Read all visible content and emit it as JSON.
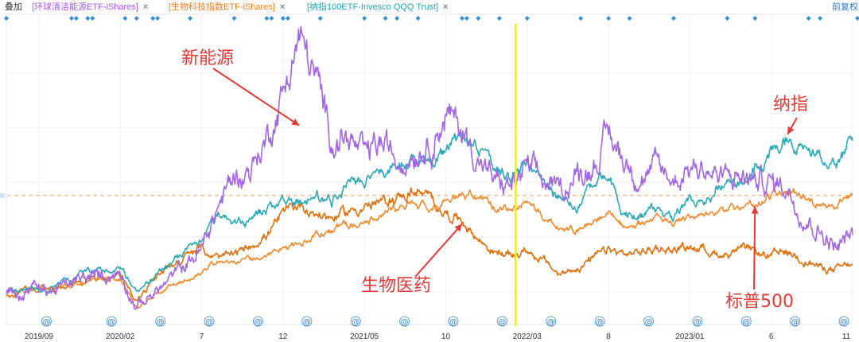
{
  "toolbar": {
    "overlay_label": "叠加",
    "series_tags": [
      {
        "label": "[环球清洁能源ETF-iShares]",
        "color": "#a855f7"
      },
      {
        "label": "[生物科技指数ETF-iShares]",
        "color": "#ee7d22"
      },
      {
        "label": "[纳指100ETF-Invesco QQQ Trust]",
        "color": "#22a7b4"
      }
    ],
    "close_symbol": "×",
    "adjust_label": "前复权"
  },
  "colors": {
    "clean_energy": "#a366e6",
    "biotech": "#e0700c",
    "nasdaq": "#2aaab8",
    "sp500": "#f08a2c",
    "cursor": "#f2f200",
    "arrow": "#e53935",
    "annotation_text": "#e53935",
    "reference_line": "#f4a460",
    "axis_text": "#333333",
    "marker": "#2f8ee0"
  },
  "chart_data": {
    "type": "line",
    "title": "",
    "xlabel": "",
    "ylabel": "",
    "x_start": "2019-07",
    "x_end": "2023-11",
    "ylim": [
      0.7,
      3.45
    ],
    "grid": true,
    "baseline": 1.0,
    "reference_value": 1.88,
    "cursor_date": "2022-02",
    "x_tick_labels": [
      {
        "label": "2019/09",
        "date": "2019-09"
      },
      {
        "label": "2020/02",
        "date": "2020-02"
      },
      {
        "label": "7",
        "date": "2020-07"
      },
      {
        "label": "12",
        "date": "2020-12"
      },
      {
        "label": "2021/05",
        "date": "2021-05"
      },
      {
        "label": "10",
        "date": "2021-10"
      },
      {
        "label": "2022/03",
        "date": "2022-03"
      },
      {
        "label": "8",
        "date": "2022-08"
      },
      {
        "label": "2023/01",
        "date": "2023-01"
      },
      {
        "label": "6",
        "date": "2023-06"
      },
      {
        "label": "11",
        "date": "2023-11"
      }
    ],
    "series": [
      {
        "key": "clean_energy",
        "name": "[环球清洁能源ETF-iShares]",
        "points": [
          [
            "2019-07",
            0.98
          ],
          [
            "2019-10",
            1.02
          ],
          [
            "2019-12",
            1.12
          ],
          [
            "2020-02",
            1.18
          ],
          [
            "2020-03",
            0.86
          ],
          [
            "2020-05",
            1.1
          ],
          [
            "2020-06",
            1.25
          ],
          [
            "2020-07",
            1.38
          ],
          [
            "2020-08",
            1.78
          ],
          [
            "2020-09",
            2.05
          ],
          [
            "2020-10",
            2.12
          ],
          [
            "2020-11",
            2.4
          ],
          [
            "2020-12",
            2.82
          ],
          [
            "2021-01",
            3.33
          ],
          [
            "2021-02",
            2.95
          ],
          [
            "2021-03",
            2.42
          ],
          [
            "2021-04",
            2.4
          ],
          [
            "2021-05",
            2.22
          ],
          [
            "2021-06",
            2.36
          ],
          [
            "2021-07",
            2.2
          ],
          [
            "2021-08",
            2.3
          ],
          [
            "2021-09",
            2.36
          ],
          [
            "2021-10",
            2.62
          ],
          [
            "2021-11",
            2.48
          ],
          [
            "2021-12",
            2.22
          ],
          [
            "2022-01",
            2.0
          ],
          [
            "2022-02",
            1.96
          ],
          [
            "2022-03",
            2.12
          ],
          [
            "2022-04",
            2.0
          ],
          [
            "2022-05",
            1.92
          ],
          [
            "2022-06",
            2.06
          ],
          [
            "2022-07",
            2.16
          ],
          [
            "2022-08",
            2.42
          ],
          [
            "2022-09",
            2.2
          ],
          [
            "2022-10",
            2.06
          ],
          [
            "2022-11",
            2.12
          ],
          [
            "2022-12",
            2.02
          ],
          [
            "2023-01",
            2.16
          ],
          [
            "2023-02",
            2.12
          ],
          [
            "2023-03",
            2.02
          ],
          [
            "2023-04",
            2.06
          ],
          [
            "2023-05",
            2.02
          ],
          [
            "2023-06",
            2.0
          ],
          [
            "2023-07",
            1.96
          ],
          [
            "2023-08",
            1.7
          ],
          [
            "2023-09",
            1.55
          ],
          [
            "2023-10",
            1.4
          ],
          [
            "2023-11",
            1.52
          ]
        ]
      },
      {
        "key": "biotech",
        "name": "[生物科技指数ETF-iShares]",
        "points": [
          [
            "2019-07",
            0.98
          ],
          [
            "2019-10",
            1.04
          ],
          [
            "2019-12",
            1.1
          ],
          [
            "2020-02",
            1.15
          ],
          [
            "2020-03",
            0.92
          ],
          [
            "2020-05",
            1.24
          ],
          [
            "2020-07",
            1.4
          ],
          [
            "2020-08",
            1.3
          ],
          [
            "2020-09",
            1.33
          ],
          [
            "2020-11",
            1.52
          ],
          [
            "2020-12",
            1.7
          ],
          [
            "2021-01",
            1.8
          ],
          [
            "2021-02",
            1.72
          ],
          [
            "2021-03",
            1.68
          ],
          [
            "2021-05",
            1.78
          ],
          [
            "2021-06",
            1.8
          ],
          [
            "2021-08",
            1.92
          ],
          [
            "2021-09",
            1.85
          ],
          [
            "2021-10",
            1.72
          ],
          [
            "2021-11",
            1.66
          ],
          [
            "2021-12",
            1.48
          ],
          [
            "2022-01",
            1.36
          ],
          [
            "2022-02",
            1.32
          ],
          [
            "2022-03",
            1.38
          ],
          [
            "2022-04",
            1.28
          ],
          [
            "2022-05",
            1.15
          ],
          [
            "2022-06",
            1.22
          ],
          [
            "2022-07",
            1.3
          ],
          [
            "2022-08",
            1.38
          ],
          [
            "2022-09",
            1.34
          ],
          [
            "2022-10",
            1.36
          ],
          [
            "2022-11",
            1.4
          ],
          [
            "2022-12",
            1.38
          ],
          [
            "2023-01",
            1.42
          ],
          [
            "2023-02",
            1.38
          ],
          [
            "2023-03",
            1.34
          ],
          [
            "2023-04",
            1.38
          ],
          [
            "2023-05",
            1.36
          ],
          [
            "2023-06",
            1.32
          ],
          [
            "2023-07",
            1.36
          ],
          [
            "2023-08",
            1.3
          ],
          [
            "2023-09",
            1.22
          ],
          [
            "2023-10",
            1.2
          ],
          [
            "2023-11",
            1.25
          ]
        ]
      },
      {
        "key": "nasdaq",
        "name": "[纳指100ETF-Invesco QQQ Trust]",
        "points": [
          [
            "2019-07",
            1.0
          ],
          [
            "2019-10",
            1.05
          ],
          [
            "2019-12",
            1.18
          ],
          [
            "2020-02",
            1.25
          ],
          [
            "2020-03",
            1.0
          ],
          [
            "2020-05",
            1.24
          ],
          [
            "2020-06",
            1.38
          ],
          [
            "2020-07",
            1.5
          ],
          [
            "2020-08",
            1.72
          ],
          [
            "2020-09",
            1.62
          ],
          [
            "2020-10",
            1.65
          ],
          [
            "2020-11",
            1.78
          ],
          [
            "2020-12",
            1.82
          ],
          [
            "2021-02",
            1.88
          ],
          [
            "2021-03",
            1.84
          ],
          [
            "2021-04",
            2.02
          ],
          [
            "2021-05",
            2.0
          ],
          [
            "2021-06",
            2.1
          ],
          [
            "2021-07",
            2.18
          ],
          [
            "2021-08",
            2.22
          ],
          [
            "2021-09",
            2.18
          ],
          [
            "2021-10",
            2.28
          ],
          [
            "2021-11",
            2.4
          ],
          [
            "2021-12",
            2.34
          ],
          [
            "2022-01",
            2.12
          ],
          [
            "2022-02",
            2.08
          ],
          [
            "2022-03",
            2.22
          ],
          [
            "2022-04",
            2.02
          ],
          [
            "2022-05",
            1.88
          ],
          [
            "2022-06",
            1.74
          ],
          [
            "2022-07",
            1.95
          ],
          [
            "2022-08",
            2.06
          ],
          [
            "2022-09",
            1.72
          ],
          [
            "2022-10",
            1.7
          ],
          [
            "2022-11",
            1.78
          ],
          [
            "2022-12",
            1.66
          ],
          [
            "2023-01",
            1.84
          ],
          [
            "2023-02",
            1.84
          ],
          [
            "2023-03",
            1.98
          ],
          [
            "2023-04",
            2.02
          ],
          [
            "2023-05",
            2.15
          ],
          [
            "2023-06",
            2.32
          ],
          [
            "2023-07",
            2.42
          ],
          [
            "2023-08",
            2.3
          ],
          [
            "2023-09",
            2.24
          ],
          [
            "2023-10",
            2.18
          ],
          [
            "2023-11",
            2.38
          ]
        ]
      },
      {
        "key": "sp500",
        "name": "",
        "points": [
          [
            "2019-07",
            1.0
          ],
          [
            "2019-10",
            1.03
          ],
          [
            "2019-12",
            1.1
          ],
          [
            "2020-02",
            1.13
          ],
          [
            "2020-03",
            0.85
          ],
          [
            "2020-05",
            1.05
          ],
          [
            "2020-07",
            1.18
          ],
          [
            "2020-08",
            1.28
          ],
          [
            "2020-09",
            1.24
          ],
          [
            "2020-11",
            1.34
          ],
          [
            "2020-12",
            1.4
          ],
          [
            "2021-02",
            1.5
          ],
          [
            "2021-03",
            1.56
          ],
          [
            "2021-05",
            1.65
          ],
          [
            "2021-07",
            1.75
          ],
          [
            "2021-08",
            1.8
          ],
          [
            "2021-09",
            1.76
          ],
          [
            "2021-10",
            1.84
          ],
          [
            "2021-12",
            1.9
          ],
          [
            "2022-01",
            1.78
          ],
          [
            "2022-02",
            1.74
          ],
          [
            "2022-03",
            1.84
          ],
          [
            "2022-04",
            1.7
          ],
          [
            "2022-05",
            1.58
          ],
          [
            "2022-06",
            1.56
          ],
          [
            "2022-07",
            1.66
          ],
          [
            "2022-08",
            1.74
          ],
          [
            "2022-09",
            1.58
          ],
          [
            "2022-10",
            1.62
          ],
          [
            "2022-11",
            1.7
          ],
          [
            "2022-12",
            1.62
          ],
          [
            "2023-01",
            1.7
          ],
          [
            "2023-02",
            1.68
          ],
          [
            "2023-03",
            1.74
          ],
          [
            "2023-04",
            1.78
          ],
          [
            "2023-05",
            1.8
          ],
          [
            "2023-06",
            1.88
          ],
          [
            "2023-07",
            1.92
          ],
          [
            "2023-08",
            1.86
          ],
          [
            "2023-09",
            1.8
          ],
          [
            "2023-10",
            1.76
          ],
          [
            "2023-11",
            1.88
          ]
        ]
      }
    ],
    "annotations": [
      {
        "text": "新能源",
        "series": "clean_energy",
        "arrow_to": [
          "2021-01",
          2.52
        ]
      },
      {
        "text": "纳指",
        "series": "nasdaq",
        "arrow_to": [
          "2023-07",
          2.44
        ]
      },
      {
        "text": "生物医药",
        "series": "biotech",
        "arrow_to": [
          "2021-11",
          1.62
        ]
      },
      {
        "text": "标普500",
        "series": "sp500",
        "arrow_to": [
          "2023-05",
          1.78
        ]
      }
    ],
    "event_markers_top": [
      "2019-07",
      "2019-11",
      "2019-11",
      "2019-12",
      "2019-12",
      "2020-02",
      "2020-03",
      "2020-04",
      "2020-04",
      "2020-06",
      "2020-09",
      "2020-11",
      "2020-11",
      "2020-12",
      "2020-12",
      "2021-02",
      "2021-05",
      "2021-06",
      "2021-07",
      "2021-08",
      "2021-11",
      "2021-11",
      "2021-12",
      "2022-01",
      "2022-03",
      "2022-06",
      "2022-08",
      "2022-09",
      "2022-12",
      "2023-03",
      "2023-05",
      "2023-08",
      "2023-09",
      "2023-11"
    ],
    "event_markers_bottom": [
      "2019-08",
      "2019-12",
      "2020-03",
      "2020-06",
      "2020-09",
      "2020-12",
      "2021-03",
      "2021-06",
      "2021-09",
      "2021-12",
      "2022-03",
      "2022-06",
      "2022-09",
      "2022-12",
      "2023-03",
      "2023-06",
      "2023-09"
    ],
    "event_marker_symbol": "@"
  }
}
